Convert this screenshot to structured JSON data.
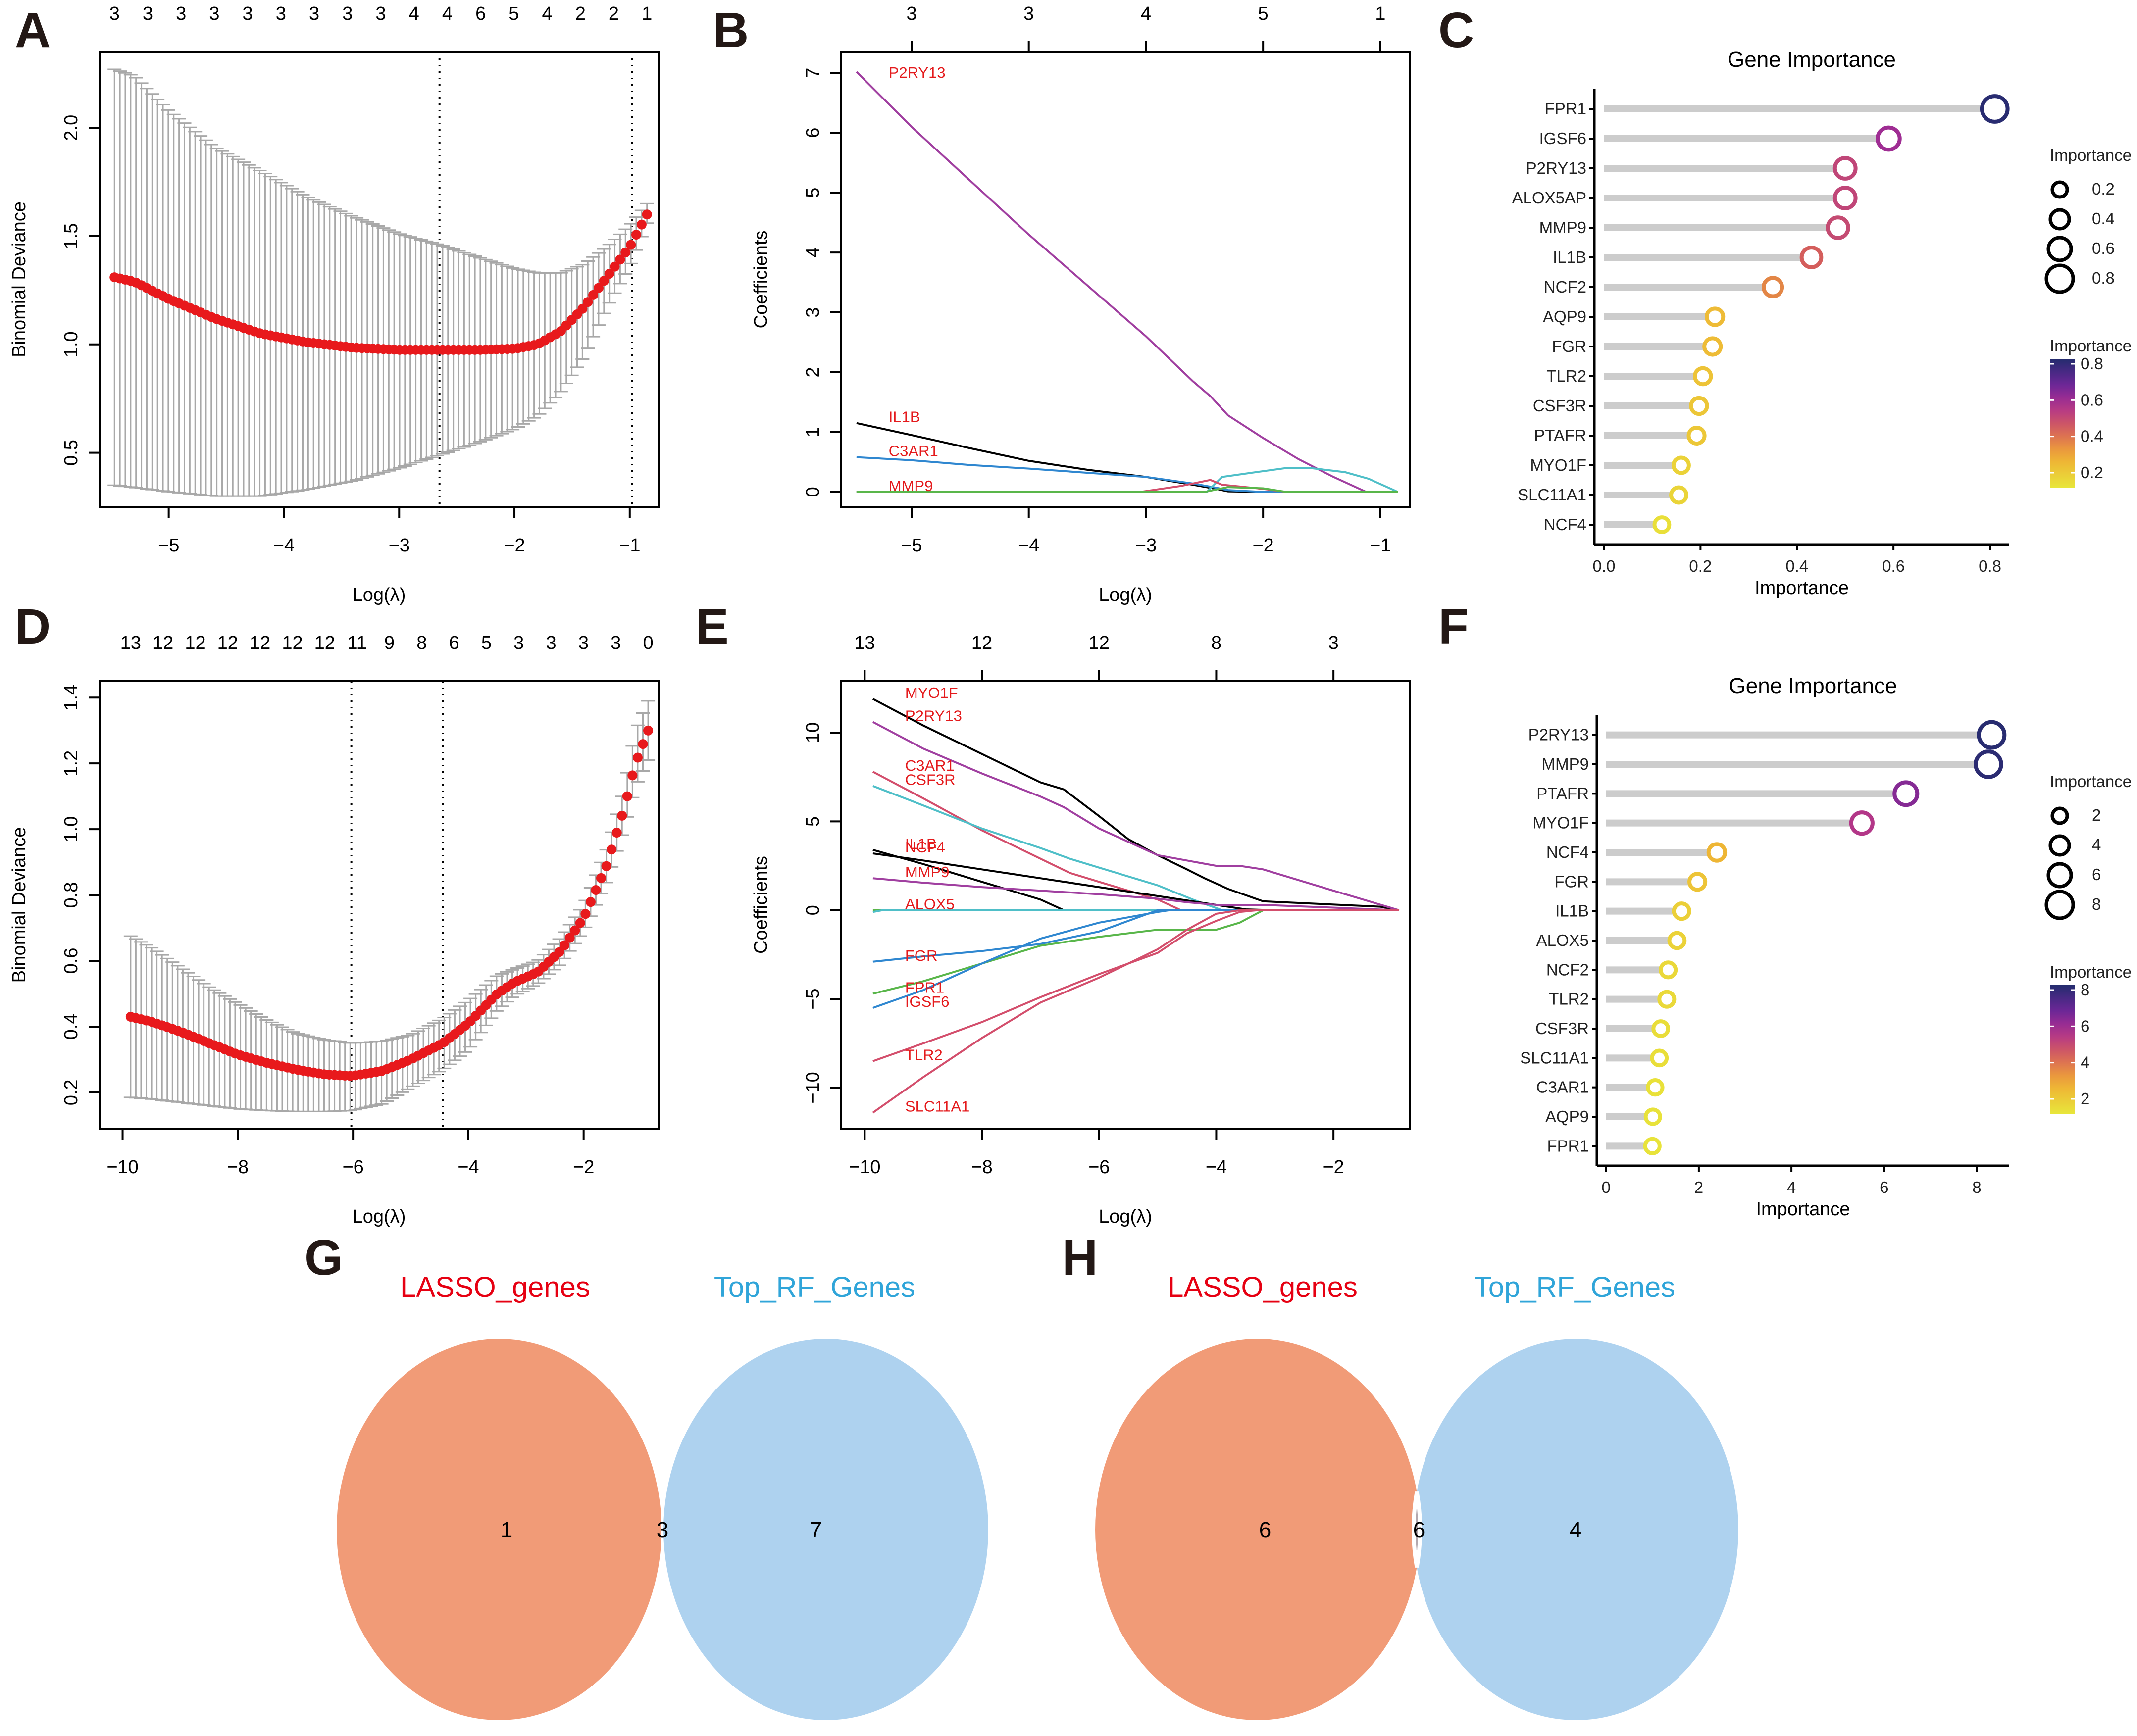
{
  "panels": {
    "A": "A",
    "B": "B",
    "C": "C",
    "D": "D",
    "E": "E",
    "F": "F",
    "G": "G",
    "H": "H"
  },
  "colors": {
    "mean_points": "#e8191c",
    "error_bars": "#a8a8a8",
    "lasso_title": "#e60012",
    "rf_title": "#30a5d9",
    "venn_left": "#f19b77",
    "venn_right": "#aed2ef",
    "venn_overlap": "#b3a8ae",
    "lollipop_bar": "#cccccc"
  },
  "chart_data": [
    {
      "id": "A",
      "type": "scatter",
      "subtype": "cv-deviance-with-errorbars",
      "xlabel": "Log(λ)",
      "ylabel": "Binomial Deviance",
      "xlim": [
        -5.6,
        -0.75
      ],
      "ylim": [
        0.25,
        2.35
      ],
      "xticks": [
        -5,
        -4,
        -3,
        -2,
        -1
      ],
      "yticks": [
        0.5,
        1.0,
        1.5,
        2.0
      ],
      "ytick_labels": [
        "0.5",
        "1.0",
        "1.5",
        "2.0"
      ],
      "top_axis_labels": [
        "3",
        "3",
        "3",
        "3",
        "3",
        "3",
        "3",
        "3",
        "3",
        "4",
        "4",
        "6",
        "5",
        "4",
        "2",
        "2",
        "1"
      ],
      "vlines": [
        -2.65,
        -0.98
      ],
      "x_range": [
        -5.47,
        -0.85
      ],
      "n_points": 100,
      "curve_keypoints": {
        "x": [
          -5.47,
          -5.3,
          -5.0,
          -4.6,
          -4.2,
          -3.8,
          -3.4,
          -3.0,
          -2.65,
          -2.3,
          -2.0,
          -1.8,
          -1.6,
          -1.4,
          -1.2,
          -1.0,
          -0.85
        ],
        "mean": [
          1.31,
          1.29,
          1.21,
          1.12,
          1.05,
          1.01,
          0.985,
          0.975,
          0.975,
          0.975,
          0.98,
          1.0,
          1.06,
          1.17,
          1.31,
          1.45,
          1.6
        ],
        "upper": [
          2.27,
          2.24,
          2.08,
          1.91,
          1.8,
          1.68,
          1.59,
          1.51,
          1.46,
          1.4,
          1.35,
          1.33,
          1.33,
          1.37,
          1.45,
          1.55,
          1.65
        ],
        "lower": [
          0.35,
          0.34,
          0.32,
          0.3,
          0.3,
          0.33,
          0.37,
          0.43,
          0.49,
          0.55,
          0.61,
          0.67,
          0.78,
          0.94,
          1.17,
          1.36,
          1.56
        ]
      }
    },
    {
      "id": "B",
      "type": "line",
      "subtype": "lasso-coefficient-paths",
      "xlabel": "Log(λ)",
      "ylabel": "Coefficients",
      "xlim": [
        -5.6,
        -0.75
      ],
      "ylim": [
        -0.25,
        7.35
      ],
      "xticks": [
        -5,
        -4,
        -3,
        -2,
        -1
      ],
      "yticks": [
        0,
        1,
        2,
        3,
        4,
        5,
        6,
        7
      ],
      "top_axis_labels": [
        "3",
        "3",
        "4",
        "5",
        "1"
      ],
      "top_axis_ticks": [
        -5,
        -4,
        -3,
        -2,
        -1
      ],
      "series": [
        {
          "name": "P2RY13",
          "color": "#a03fa0",
          "label": "P2RY13",
          "x": [
            -5.47,
            -5.0,
            -4.5,
            -4.0,
            -3.5,
            -3.0,
            -2.6,
            -2.45,
            -2.3,
            -2.0,
            -1.7,
            -1.4,
            -1.12,
            -0.85
          ],
          "y": [
            7.02,
            6.1,
            5.2,
            4.3,
            3.45,
            2.6,
            1.85,
            1.6,
            1.28,
            0.9,
            0.55,
            0.25,
            0.0,
            0.0
          ]
        },
        {
          "name": "IL1B",
          "color": "#000000",
          "label": "IL1B",
          "x": [
            -5.47,
            -5.0,
            -4.5,
            -4.0,
            -3.5,
            -3.0,
            -2.6,
            -2.4,
            -2.3,
            -2.0,
            -0.85
          ],
          "y": [
            1.15,
            0.95,
            0.73,
            0.52,
            0.37,
            0.25,
            0.12,
            0.05,
            0.01,
            0.0,
            0.0
          ]
        },
        {
          "name": "C3AR1",
          "color": "#2f87d0",
          "label": "C3AR1",
          "x": [
            -5.47,
            -5.0,
            -4.5,
            -4.0,
            -3.5,
            -3.0,
            -2.6,
            -2.4,
            -2.3,
            -2.0,
            -0.85
          ],
          "y": [
            0.58,
            0.53,
            0.45,
            0.39,
            0.32,
            0.25,
            0.14,
            0.07,
            0.03,
            0.0,
            0.0
          ]
        },
        {
          "name": "MMP9",
          "color": "#4fbfc8",
          "label": "MMP9",
          "x": [
            -5.47,
            -2.48,
            -2.35,
            -2.1,
            -1.8,
            -1.6,
            -1.3,
            -1.1,
            -0.85
          ],
          "y": [
            0.0,
            0.0,
            0.25,
            0.32,
            0.4,
            0.4,
            0.33,
            0.22,
            0.0
          ]
        },
        {
          "name": "pink-path",
          "color": "#d34e6c",
          "label": "",
          "x": [
            -5.47,
            -3.05,
            -2.7,
            -2.45,
            -2.35,
            -2.0,
            -1.8,
            -0.85
          ],
          "y": [
            0.0,
            0.0,
            0.1,
            0.2,
            0.12,
            0.05,
            0.0,
            0.0
          ]
        },
        {
          "name": "green-path",
          "color": "#59b64a",
          "label": "",
          "x": [
            -5.47,
            -2.5,
            -2.3,
            -2.0,
            -1.8,
            -0.85
          ],
          "y": [
            0.0,
            0.0,
            0.08,
            0.06,
            0.0,
            0.0
          ]
        }
      ]
    },
    {
      "id": "C",
      "type": "scatter",
      "subtype": "lollipop",
      "title": "Gene Importance",
      "xlabel": "Importance",
      "xlim": [
        -0.02,
        0.84
      ],
      "xticks": [
        0.0,
        0.2,
        0.4,
        0.6,
        0.8
      ],
      "xtick_labels": [
        "0.0",
        "0.2",
        "0.4",
        "0.6",
        "0.8"
      ],
      "categories": [
        "FPR1",
        "IGSF6",
        "P2RY13",
        "ALOX5AP",
        "MMP9",
        "IL1B",
        "NCF2",
        "AQP9",
        "FGR",
        "TLR2",
        "CSF3R",
        "PTAFR",
        "MYO1F",
        "SLC11A1",
        "NCF4"
      ],
      "values": [
        0.81,
        0.59,
        0.5,
        0.5,
        0.485,
        0.43,
        0.35,
        0.23,
        0.225,
        0.205,
        0.197,
        0.192,
        0.16,
        0.155,
        0.12
      ],
      "color_range": [
        0.1,
        0.82
      ],
      "legend": {
        "size_title": "Importance",
        "size_values": [
          "0.2",
          "0.4",
          "0.6",
          "0.8"
        ],
        "color_title": "Importance",
        "color_ticks": [
          "0.8",
          "0.6",
          "0.4",
          "0.2"
        ],
        "placement": "right"
      }
    },
    {
      "id": "D",
      "type": "scatter",
      "subtype": "cv-deviance-with-errorbars",
      "xlabel": "Log(λ)",
      "ylabel": "Binomial Deviance",
      "xlim": [
        -10.4,
        -0.7
      ],
      "ylim": [
        0.09,
        1.45
      ],
      "xticks": [
        -10,
        -8,
        -6,
        -4,
        -2
      ],
      "yticks": [
        0.2,
        0.4,
        0.6,
        0.8,
        1.0,
        1.2,
        1.4
      ],
      "ytick_labels": [
        "0.2",
        "0.4",
        "0.6",
        "0.8",
        "1.0",
        "1.2",
        "1.4"
      ],
      "top_axis_labels": [
        "13",
        "12",
        "12",
        "12",
        "12",
        "12",
        "12",
        "11",
        "9",
        "8",
        "6",
        "5",
        "3",
        "3",
        "3",
        "3",
        "0"
      ],
      "vlines": [
        -6.03,
        -4.44
      ],
      "x_range": [
        -9.86,
        -0.88
      ],
      "n_points": 100,
      "curve_keypoints": {
        "x": [
          -9.86,
          -9.5,
          -9.0,
          -8.5,
          -8.0,
          -7.5,
          -7.0,
          -6.5,
          -6.03,
          -5.5,
          -5.0,
          -4.44,
          -4.0,
          -3.5,
          -3.2,
          -2.8,
          -2.4,
          -2.0,
          -1.6,
          -1.3,
          -1.1,
          -0.88
        ],
        "mean": [
          0.43,
          0.415,
          0.385,
          0.35,
          0.315,
          0.29,
          0.27,
          0.255,
          0.25,
          0.265,
          0.3,
          0.35,
          0.41,
          0.5,
          0.535,
          0.565,
          0.63,
          0.73,
          0.89,
          1.06,
          1.2,
          1.3
        ],
        "upper": [
          0.675,
          0.64,
          0.58,
          0.52,
          0.47,
          0.42,
          0.38,
          0.36,
          0.35,
          0.355,
          0.375,
          0.425,
          0.48,
          0.555,
          0.575,
          0.6,
          0.67,
          0.77,
          0.94,
          1.12,
          1.3,
          1.39
        ],
        "lower": [
          0.185,
          0.18,
          0.17,
          0.16,
          0.15,
          0.145,
          0.142,
          0.142,
          0.145,
          0.165,
          0.215,
          0.27,
          0.33,
          0.45,
          0.495,
          0.53,
          0.59,
          0.69,
          0.84,
          1.0,
          1.13,
          1.21
        ]
      }
    },
    {
      "id": "E",
      "type": "line",
      "subtype": "lasso-coefficient-paths",
      "xlabel": "Log(λ)",
      "ylabel": "Coefficients",
      "xlim": [
        -10.4,
        -0.7
      ],
      "ylim": [
        -12.3,
        12.9
      ],
      "xticks": [
        -10,
        -8,
        -6,
        -4,
        -2
      ],
      "yticks": [
        -10,
        -5,
        0,
        5,
        10
      ],
      "top_axis_labels": [
        "13",
        "12",
        "12",
        "8",
        "3"
      ],
      "top_axis_ticks": [
        -10,
        -8,
        -6,
        -4,
        -2
      ],
      "series": [
        {
          "name": "MYO1F",
          "color": "#000000",
          "label": "MYO1F",
          "x": [
            -9.86,
            -9.0,
            -8.0,
            -7.0,
            -6.6,
            -6.0,
            -5.5,
            -5.0,
            -4.5,
            -4.2,
            -3.8,
            -3.2,
            -1.2,
            -0.88
          ],
          "y": [
            11.9,
            10.4,
            8.8,
            7.2,
            6.8,
            5.3,
            4.0,
            3.1,
            2.3,
            1.8,
            1.2,
            0.5,
            0.2,
            0.0
          ]
        },
        {
          "name": "P2RY13",
          "color": "#a03fa0",
          "label": "P2RY13",
          "x": [
            -9.86,
            -9.0,
            -8.0,
            -7.0,
            -6.6,
            -6.0,
            -5.0,
            -4.0,
            -3.6,
            -3.2,
            -2.0,
            -0.88
          ],
          "y": [
            10.6,
            9.1,
            7.7,
            6.4,
            5.8,
            4.6,
            3.1,
            2.5,
            2.5,
            2.3,
            1.1,
            0.0
          ]
        },
        {
          "name": "C3AR1",
          "color": "#d34e6c",
          "label": "C3AR1",
          "x": [
            -9.86,
            -9.0,
            -8.0,
            -7.0,
            -6.5,
            -6.0,
            -5.0,
            -4.6,
            -0.88
          ],
          "y": [
            7.8,
            6.3,
            4.5,
            2.9,
            2.1,
            1.6,
            0.6,
            0.0,
            0.0
          ]
        },
        {
          "name": "CSF3R",
          "color": "#4fbfc8",
          "label": "CSF3R",
          "x": [
            -9.86,
            -9.0,
            -8.0,
            -7.0,
            -6.5,
            -6.0,
            -5.0,
            -4.4,
            -3.9,
            -0.88
          ],
          "y": [
            7.0,
            5.9,
            4.6,
            3.5,
            2.9,
            2.4,
            1.4,
            0.6,
            0.0,
            0.0
          ]
        },
        {
          "name": "IL1B",
          "color": "#000000",
          "label": "IL1B",
          "x": [
            -9.86,
            -9.0,
            -8.0,
            -7.0,
            -6.6,
            -0.88
          ],
          "y": [
            3.4,
            2.6,
            1.6,
            0.6,
            0.0,
            0.0
          ]
        },
        {
          "name": "NCF4",
          "color": "#000000",
          "label": "NCF4",
          "x": [
            -9.86,
            -9.0,
            -8.0,
            -7.0,
            -6.0,
            -5.0,
            -4.0,
            -3.5,
            -3.0,
            -0.88
          ],
          "y": [
            3.2,
            2.8,
            2.3,
            1.8,
            1.3,
            0.8,
            0.3,
            0.05,
            0.0,
            0.0
          ]
        },
        {
          "name": "MMP9",
          "color": "#a03fa0",
          "label": "MMP9",
          "x": [
            -9.86,
            -9.0,
            -8.0,
            -7.0,
            -6.0,
            -5.0,
            -4.5,
            -4.0,
            -3.2,
            -0.88
          ],
          "y": [
            1.8,
            1.55,
            1.3,
            1.1,
            0.9,
            0.65,
            0.45,
            0.3,
            0.3,
            0.0
          ]
        },
        {
          "name": "ALOX5",
          "color": "#59b64a",
          "label": "ALOX5",
          "x": [
            -9.86,
            -0.88
          ],
          "y": [
            0.0,
            0.0
          ]
        },
        {
          "name": "ALOX5-flat",
          "color": "#4fbfc8",
          "label": "",
          "x": [
            -9.86,
            -9.7,
            -0.88
          ],
          "y": [
            -0.1,
            0.0,
            0.0
          ]
        },
        {
          "name": "FGR",
          "color": "#2f87d0",
          "label": "FGR",
          "x": [
            -9.86,
            -9.0,
            -8.0,
            -7.0,
            -6.0,
            -5.0,
            -0.88
          ],
          "y": [
            -2.9,
            -2.6,
            -2.3,
            -1.9,
            -1.2,
            0.0,
            0.0
          ]
        },
        {
          "name": "FPR1",
          "color": "#59b64a",
          "label": "FPR1",
          "x": [
            -9.86,
            -9.0,
            -8.0,
            -7.0,
            -6.0,
            -5.0,
            -4.0,
            -3.6,
            -3.2,
            -0.88
          ],
          "y": [
            -4.7,
            -4.0,
            -3.0,
            -2.0,
            -1.5,
            -1.1,
            -1.1,
            -0.7,
            0.0,
            0.0
          ]
        },
        {
          "name": "IGSF6",
          "color": "#2f87d0",
          "label": "IGSF6",
          "x": [
            -9.86,
            -9.0,
            -8.0,
            -7.0,
            -6.0,
            -5.0,
            -4.8,
            -0.88
          ],
          "y": [
            -5.5,
            -4.5,
            -3.0,
            -1.6,
            -0.7,
            -0.1,
            0.0,
            0.0
          ]
        },
        {
          "name": "TLR2",
          "color": "#d34e6c",
          "label": "TLR2",
          "x": [
            -9.86,
            -9.0,
            -8.0,
            -7.0,
            -6.0,
            -5.0,
            -4.5,
            -4.0,
            -3.6,
            -3.3,
            -0.88
          ],
          "y": [
            -8.5,
            -7.5,
            -6.3,
            -4.9,
            -3.6,
            -2.4,
            -1.3,
            -0.6,
            -0.1,
            0.0,
            0.0
          ]
        },
        {
          "name": "SLC11A1",
          "color": "#d34e6c",
          "label": "SLC11A1",
          "x": [
            -9.86,
            -9.0,
            -8.0,
            -7.0,
            -6.0,
            -5.0,
            -4.5,
            -4.0,
            -3.6,
            -0.88
          ],
          "y": [
            -11.4,
            -9.4,
            -7.2,
            -5.2,
            -3.8,
            -2.2,
            -1.1,
            -0.2,
            0.0,
            0.0
          ]
        }
      ]
    },
    {
      "id": "F",
      "type": "scatter",
      "subtype": "lollipop",
      "title": "Gene Importance",
      "xlabel": "Importance",
      "xlim": [
        -0.2,
        8.7
      ],
      "xticks": [
        0,
        2,
        4,
        6,
        8
      ],
      "xtick_labels": [
        "0",
        "2",
        "4",
        "6",
        "8"
      ],
      "categories": [
        "P2RY13",
        "MMP9",
        "PTAFR",
        "MYO1F",
        "NCF4",
        "FGR",
        "IL1B",
        "ALOX5",
        "NCF2",
        "TLR2",
        "CSF3R",
        "SLC11A1",
        "C3AR1",
        "AQP9",
        "FPR1"
      ],
      "values": [
        8.32,
        8.25,
        6.47,
        5.52,
        2.39,
        1.97,
        1.63,
        1.53,
        1.34,
        1.31,
        1.18,
        1.15,
        1.06,
        1.01,
        1.0
      ],
      "color_range": [
        0.9,
        8.4
      ],
      "legend": {
        "size_title": "Importance",
        "size_values": [
          "2",
          "4",
          "6",
          "8"
        ],
        "color_title": "Importance",
        "color_ticks": [
          "8",
          "6",
          "4",
          "2"
        ],
        "placement": "right"
      }
    }
  ],
  "venns": [
    {
      "id": "G",
      "left_title": "LASSO_genes",
      "right_title": "Top_RF_Genes",
      "left_only": "1",
      "overlap": "3",
      "right_only": "7"
    },
    {
      "id": "H",
      "left_title": "LASSO_genes",
      "right_title": "Top_RF_Genes",
      "left_only": "6",
      "overlap": "6",
      "right_only": "4"
    }
  ]
}
